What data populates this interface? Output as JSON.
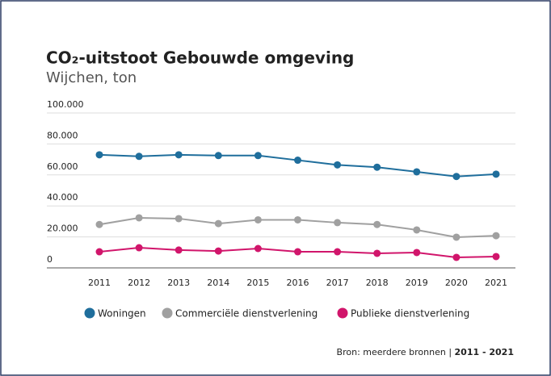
{
  "chart_data": {
    "type": "line",
    "title": "CO₂-uitstoot Gebouwde omgeving",
    "subtitle": "Wijchen, ton",
    "source": "Bron: meerdere bronnen |",
    "source_period": "2011 - 2021",
    "categories": [
      "2011",
      "2012",
      "2013",
      "2014",
      "2015",
      "2016",
      "2017",
      "2018",
      "2019",
      "2020",
      "2021"
    ],
    "series": [
      {
        "name": "Woningen",
        "color": "#1f6e9c",
        "values": [
          73000,
          72000,
          73000,
          72500,
          72500,
          69500,
          66500,
          65000,
          62000,
          59000,
          60500
        ]
      },
      {
        "name": "Commerciële dienstverlening",
        "color": "#a0a0a0",
        "values": [
          28000,
          32300,
          31800,
          28600,
          31000,
          31000,
          29200,
          28000,
          24500,
          19800,
          20800
        ]
      },
      {
        "name": "Publieke dienstverlening",
        "color": "#d1156b",
        "values": [
          10400,
          13000,
          11500,
          10900,
          12500,
          10400,
          10400,
          9400,
          9900,
          6800,
          7300
        ]
      }
    ],
    "ylim": [
      0,
      100000
    ],
    "yticks": [
      0,
      {
        "value": 20000,
        "label": "20.000"
      },
      {
        "value": 40000,
        "label": "40.000"
      },
      {
        "value": 60000,
        "label": "60.000"
      },
      {
        "value": 80000,
        "label": "80.000"
      },
      {
        "value": 100000,
        "label": "100.000"
      }
    ],
    "grid": true,
    "legend": "bottom"
  }
}
